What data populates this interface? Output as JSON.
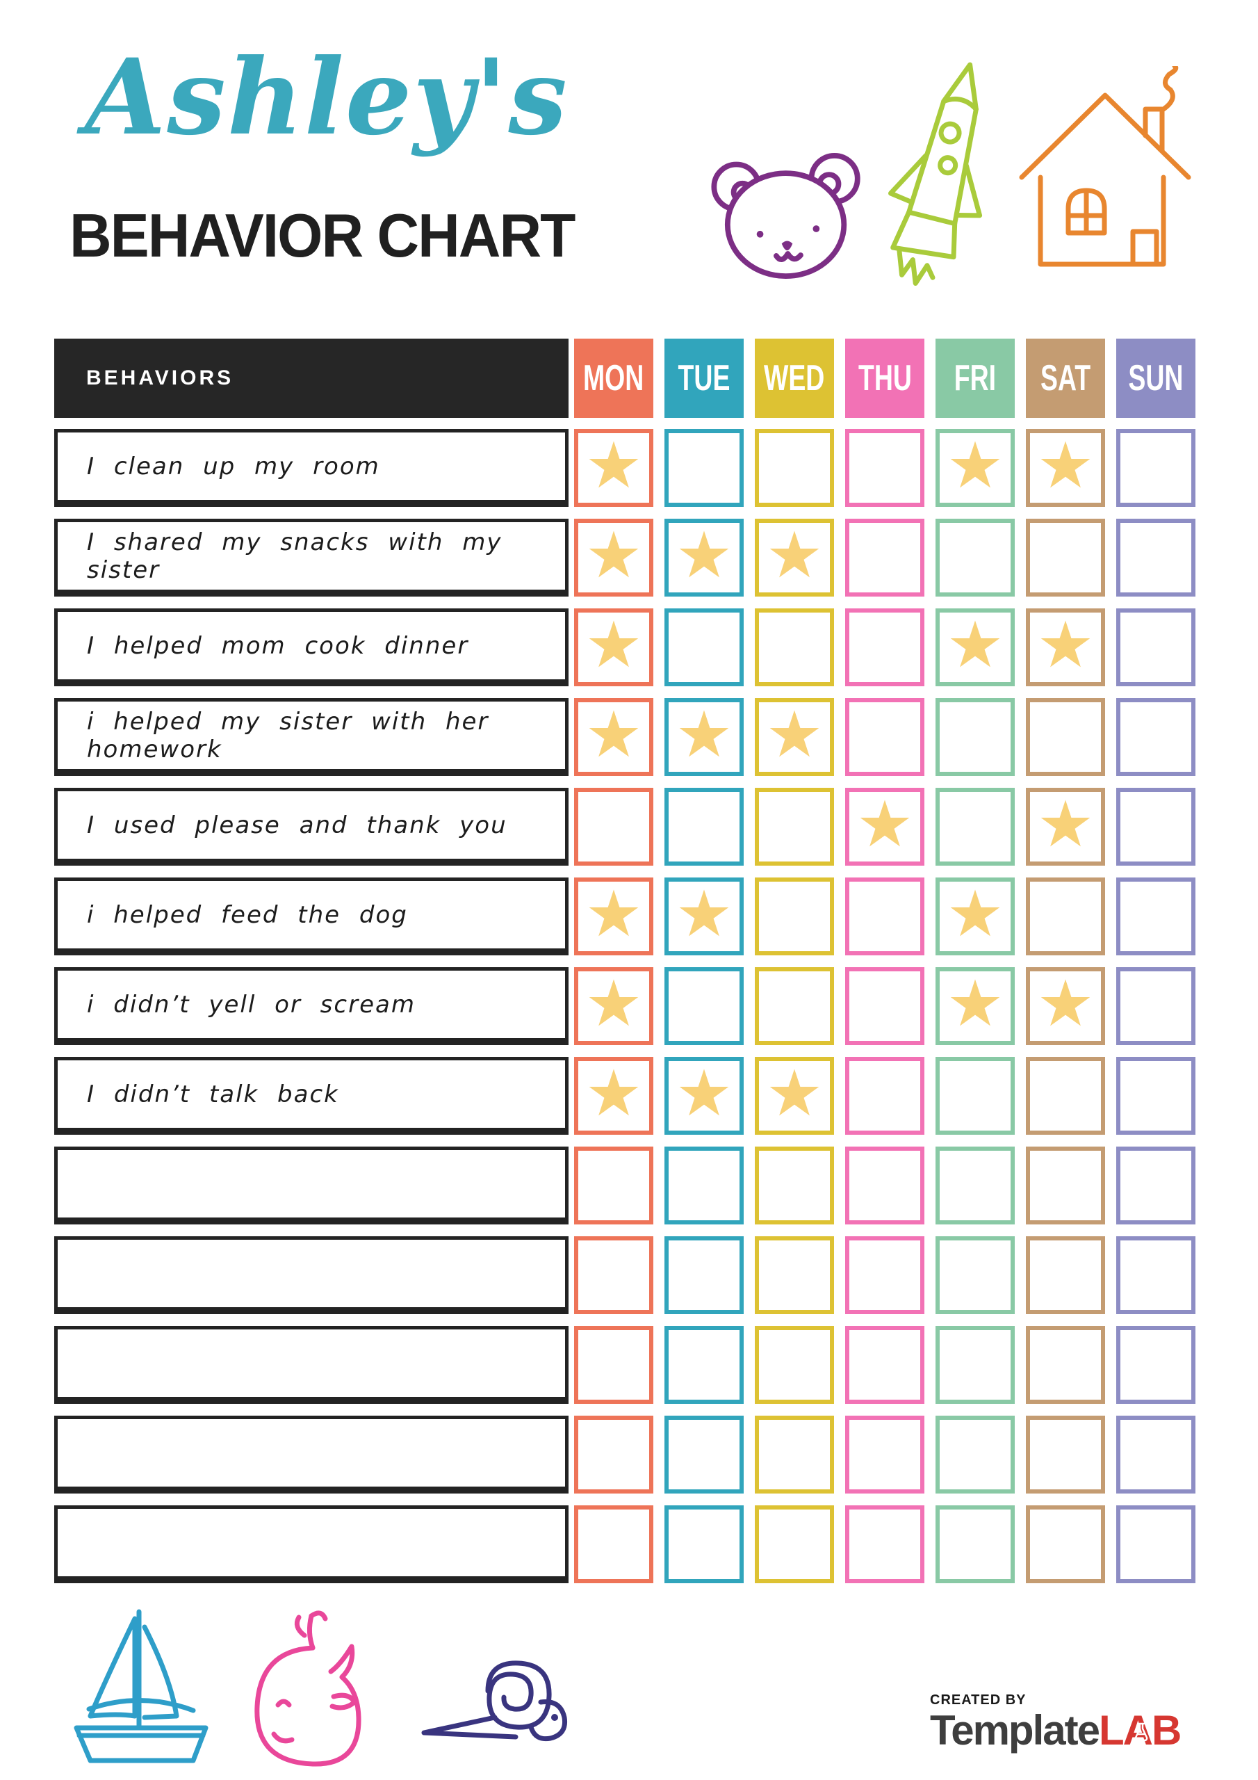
{
  "header": {
    "name": "Ashley's",
    "title": "BEHAVIOR CHART",
    "name_color": "#3BA8BD",
    "title_color": "#202020"
  },
  "decorations": {
    "top": [
      {
        "icon": "bear-icon",
        "color": "#7C2E85"
      },
      {
        "icon": "rocket-icon",
        "color": "#A9CB3B"
      },
      {
        "icon": "house-icon",
        "color": "#E8862F"
      }
    ],
    "bottom": [
      {
        "icon": "sailboat-icon",
        "color": "#2E9EC9"
      },
      {
        "icon": "whale-icon",
        "color": "#E9479A"
      },
      {
        "icon": "snail-icon",
        "color": "#39347F"
      }
    ]
  },
  "table": {
    "behaviors_header": "BEHAVIORS",
    "header_bg": "#262626",
    "row_border_color": "#232323",
    "star_color": "#F8D178",
    "star_glyph": "★",
    "days": [
      {
        "label": "MON",
        "color": "#EE7458"
      },
      {
        "label": "TUE",
        "color": "#31A5BC"
      },
      {
        "label": "WED",
        "color": "#DDC233"
      },
      {
        "label": "THU",
        "color": "#F272B5"
      },
      {
        "label": "FRI",
        "color": "#89C9A5"
      },
      {
        "label": "SAT",
        "color": "#C49C72"
      },
      {
        "label": "SUN",
        "color": "#8D8DC4"
      }
    ],
    "rows": [
      {
        "behavior": "I clean up my room",
        "stars": [
          true,
          false,
          false,
          false,
          true,
          true,
          false
        ]
      },
      {
        "behavior": "I shared my snacks with my sister",
        "stars": [
          true,
          true,
          true,
          false,
          false,
          false,
          false
        ]
      },
      {
        "behavior": "I helped mom cook dinner",
        "stars": [
          true,
          false,
          false,
          false,
          true,
          true,
          false
        ]
      },
      {
        "behavior": "i helped my sister with her homework",
        "stars": [
          true,
          true,
          true,
          false,
          false,
          false,
          false
        ]
      },
      {
        "behavior": "I used please and thank you",
        "stars": [
          false,
          false,
          false,
          true,
          false,
          true,
          false
        ]
      },
      {
        "behavior": "i helped feed the dog",
        "stars": [
          true,
          true,
          false,
          false,
          true,
          false,
          false
        ]
      },
      {
        "behavior": "i didn’t yell or scream",
        "stars": [
          true,
          false,
          false,
          false,
          true,
          true,
          false
        ]
      },
      {
        "behavior": "I didn’t talk back",
        "stars": [
          true,
          true,
          true,
          false,
          false,
          false,
          false
        ]
      },
      {
        "behavior": "",
        "stars": [
          false,
          false,
          false,
          false,
          false,
          false,
          false
        ]
      },
      {
        "behavior": "",
        "stars": [
          false,
          false,
          false,
          false,
          false,
          false,
          false
        ]
      },
      {
        "behavior": "",
        "stars": [
          false,
          false,
          false,
          false,
          false,
          false,
          false
        ]
      },
      {
        "behavior": "",
        "stars": [
          false,
          false,
          false,
          false,
          false,
          false,
          false
        ]
      },
      {
        "behavior": "",
        "stars": [
          false,
          false,
          false,
          false,
          false,
          false,
          false
        ]
      }
    ]
  },
  "footer": {
    "created_by": "CREATED BY",
    "brand_template": "Template",
    "brand_lab": "LAB",
    "brand_template_color": "#3E3E3E",
    "brand_lab_color": "#D63731"
  }
}
